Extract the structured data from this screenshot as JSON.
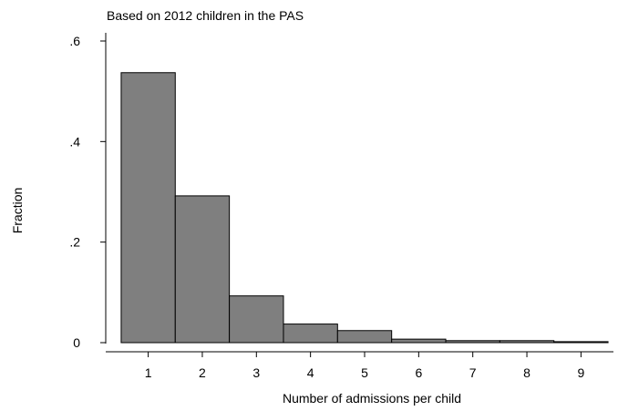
{
  "chart_data": {
    "type": "bar",
    "subtitle": "Based on 2012 children in the PAS",
    "xlabel": "Number of admissions per child",
    "ylabel": "Fraction",
    "categories": [
      "1",
      "2",
      "3",
      "4",
      "5",
      "6",
      "7",
      "8",
      "9"
    ],
    "values": [
      0.537,
      0.292,
      0.093,
      0.037,
      0.024,
      0.007,
      0.004,
      0.004,
      0.002
    ],
    "xlim": [
      0.4,
      9.6
    ],
    "ylim": [
      0,
      0.62
    ],
    "y_ticks": [
      {
        "value": 0,
        "label": "0"
      },
      {
        "value": 0.2,
        "label": ".2"
      },
      {
        "value": 0.4,
        "label": ".4"
      },
      {
        "value": 0.6,
        "label": ".6"
      }
    ],
    "x_ticks": [
      {
        "value": 1,
        "label": "1"
      },
      {
        "value": 2,
        "label": "2"
      },
      {
        "value": 3,
        "label": "3"
      },
      {
        "value": 4,
        "label": "4"
      },
      {
        "value": 5,
        "label": "5"
      },
      {
        "value": 6,
        "label": "6"
      },
      {
        "value": 7,
        "label": "7"
      },
      {
        "value": 8,
        "label": "8"
      },
      {
        "value": 9,
        "label": "9"
      }
    ],
    "bar_color": "#7f7f7f",
    "bar_stroke": "#000000",
    "grid": false,
    "legend": "none"
  }
}
